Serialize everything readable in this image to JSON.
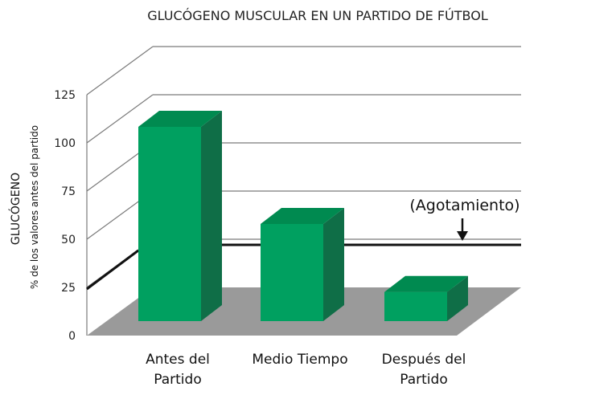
{
  "chart_data": {
    "type": "bar",
    "title": "GLUCÓGENO MUSCULAR EN UN PARTIDO DE FÚTBOL",
    "ylabel": "GLUCÓGENO",
    "ylabel_sub": "% de los valores antes del partido",
    "xlabel": "",
    "categories": [
      [
        "Antes del",
        "Partido"
      ],
      [
        "Medio Tiempo"
      ],
      [
        "Después del",
        "Partido"
      ]
    ],
    "values": [
      100,
      50,
      15
    ],
    "ylim": [
      0,
      125
    ],
    "yticks": [
      0,
      25,
      50,
      75,
      100,
      125
    ],
    "grid": true,
    "threshold": {
      "value": 40,
      "label": "(Agotamiento)"
    },
    "colors": {
      "bar_front": "#00a060",
      "bar_top": "#008a50",
      "bar_side": "#0f6e47",
      "floor": "#9a9a9a",
      "grid": "#7a7a7a",
      "threshold": "#111111"
    }
  }
}
